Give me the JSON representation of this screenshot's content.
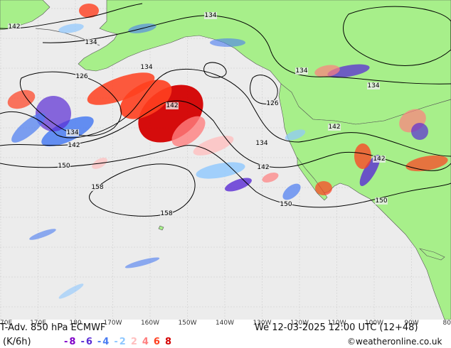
{
  "map": {
    "contours": [
      {
        "label": "142"
      },
      {
        "label": "134"
      },
      {
        "label": "134"
      },
      {
        "label": "126"
      },
      {
        "label": "134"
      },
      {
        "label": "142"
      },
      {
        "label": "134"
      },
      {
        "label": "142"
      },
      {
        "label": "150"
      },
      {
        "label": "158"
      },
      {
        "label": "158"
      },
      {
        "label": "126"
      },
      {
        "label": "134"
      },
      {
        "label": "142"
      },
      {
        "label": "150"
      },
      {
        "label": "134"
      },
      {
        "label": "134"
      },
      {
        "label": "142"
      },
      {
        "label": "142"
      },
      {
        "label": "150"
      }
    ],
    "colors": {
      "ocean": "#ececec",
      "land": "#a7ef8a",
      "contour": "#000000",
      "warm": [
        "#ffbfbf",
        "#ff7f7f",
        "#ff3f1f",
        "#d40000"
      ],
      "cold": [
        "#8fc8ff",
        "#4a7cf2",
        "#5a2cd4",
        "#7f00c8"
      ]
    }
  },
  "axis": {
    "lon_labels": [
      "70E",
      "170E",
      "180",
      "170W",
      "160W",
      "150W",
      "140W",
      "130W",
      "120W",
      "110W",
      "100W",
      "90W",
      "80"
    ]
  },
  "footer": {
    "title": "T-Adv. 850 hPa  ECMWF",
    "datetime": "We 12-03-2025 12:00 UTC (12+48)",
    "units": "(K/6h)",
    "legend_values": [
      {
        "text": "-8",
        "color": "#7f00c8"
      },
      {
        "text": "-6",
        "color": "#5a2cd4"
      },
      {
        "text": "-4",
        "color": "#4a7cf2"
      },
      {
        "text": "-2",
        "color": "#8fc8ff"
      },
      {
        "text": "2",
        "color": "#ffbfbf"
      },
      {
        "text": "4",
        "color": "#ff7f7f"
      },
      {
        "text": "6",
        "color": "#ff3f1f"
      },
      {
        "text": "8",
        "color": "#d40000"
      }
    ],
    "copyright": "©weatheronline.co.uk"
  }
}
